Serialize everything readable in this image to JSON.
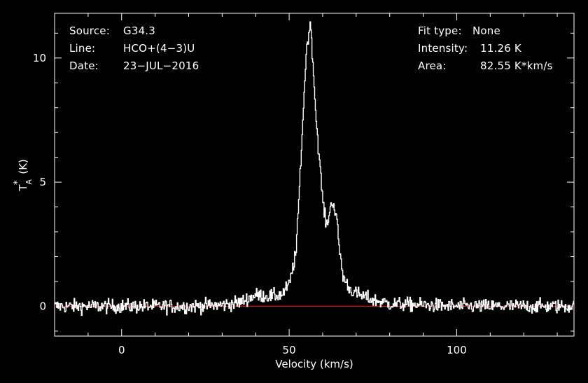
{
  "header": {
    "left": [
      {
        "key": "Source:",
        "value": "G34.3"
      },
      {
        "key": "Line:",
        "value": "HCO+(4−3)U"
      },
      {
        "key": "Date:",
        "value": "23−JUL−2016"
      }
    ],
    "right": [
      {
        "key": "Fit type:",
        "value": "None"
      },
      {
        "key": "Intensity:",
        "value": "11.26 K"
      },
      {
        "key": "Area:",
        "value": "82.55 K*km/s"
      }
    ]
  },
  "chart_data": {
    "type": "line",
    "xlabel": "Velocity (km/s)",
    "ylabel": "T*A (K)",
    "xlim": [
      -20,
      135
    ],
    "ylim": [
      -1.2,
      11.8
    ],
    "xticks": [
      0,
      50,
      100
    ],
    "yticks": [
      0,
      5,
      10
    ],
    "grid": false,
    "colors": {
      "spectrum": "#ffffff",
      "baseline": "#ff0000",
      "frame": "#ffffff",
      "background": "#000000"
    },
    "baseline_value": 0,
    "series": [
      {
        "values_description_omitted": true,
        "x": [
          -20,
          -10,
          0,
          10,
          20,
          30,
          35,
          40,
          45,
          48,
          50,
          52,
          53,
          54,
          55,
          56,
          56.5,
          57,
          58,
          59,
          60,
          61,
          62,
          62.8,
          64,
          65,
          66,
          68,
          70,
          75,
          80,
          90,
          100,
          110,
          120,
          135
        ],
        "y": [
          0,
          0,
          0,
          0,
          0,
          0.05,
          0.15,
          0.45,
          0.4,
          0.5,
          0.9,
          2.2,
          4.8,
          7.5,
          10.2,
          11.26,
          11.1,
          9.8,
          7.5,
          5.8,
          4.2,
          3.2,
          3.8,
          4.3,
          3.6,
          2.2,
          1.2,
          0.7,
          0.5,
          0.25,
          0.1,
          0.05,
          0,
          0,
          0,
          0
        ]
      }
    ],
    "noise_rms": 0.2
  }
}
